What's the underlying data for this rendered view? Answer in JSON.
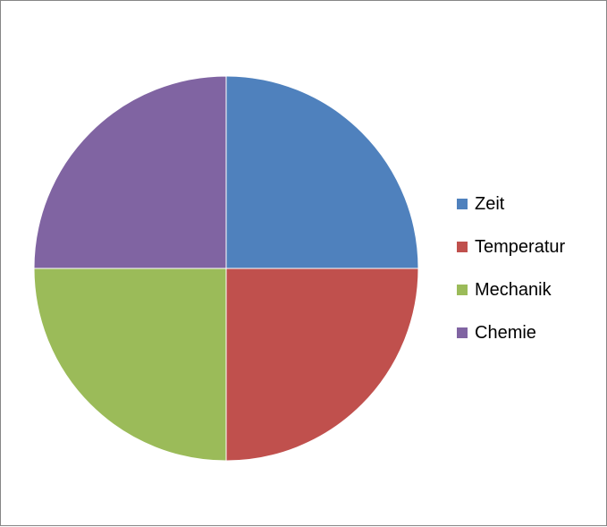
{
  "chart_data": {
    "type": "pie",
    "title": "",
    "legend_position": "right",
    "categories": [
      "Zeit",
      "Temperatur",
      "Mechanik",
      "Chemie"
    ],
    "values": [
      25,
      25,
      25,
      25
    ],
    "colors": [
      "#4f81bd",
      "#c0504d",
      "#9bbb59",
      "#8064a2"
    ]
  }
}
